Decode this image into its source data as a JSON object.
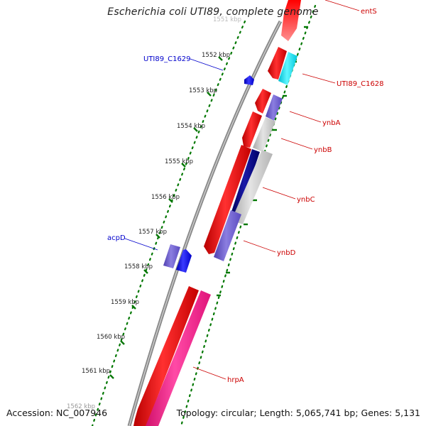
{
  "title": "Escherichia coli UTI89, complete genome",
  "footer": {
    "accession": "Accession: NC_007946",
    "stats": "Topology: circular; Length: 5,065,741 bp; Genes: 5,131"
  },
  "colors": {
    "backbone": "#808080",
    "gene_forward": "#ff0000",
    "gene_reverse": "#0000ff",
    "label_forward": "#cc0000",
    "label_reverse": "#0000cc",
    "tick_mark": "#007700",
    "pink_gene": "#ff1a8c",
    "cyan_gene": "#00e5ee",
    "slate_gene": "#6a5acd",
    "navy_gene": "#000080",
    "grey_gene": "#c0c0c0"
  },
  "scale_ticks": [
    {
      "label": "1551 kbp",
      "faded": true
    },
    {
      "label": "1552 kbp"
    },
    {
      "label": "1553 kbp"
    },
    {
      "label": "1554 kbp"
    },
    {
      "label": "1555 kbp"
    },
    {
      "label": "1556 kbp"
    },
    {
      "label": "1557 kbp"
    },
    {
      "label": "1558 kbp"
    },
    {
      "label": "1559 kbp"
    },
    {
      "label": "1560 kbp"
    },
    {
      "label": "1561 kbp"
    },
    {
      "label": "1562 kbp",
      "faded": true
    }
  ],
  "gene_labels": {
    "forward": [
      "entS",
      "UTI89_C1628",
      "ynbA",
      "ynbB",
      "ynbC",
      "ynbD",
      "hrpA"
    ],
    "reverse": [
      "UTI89_C1629",
      "acpD"
    ]
  }
}
